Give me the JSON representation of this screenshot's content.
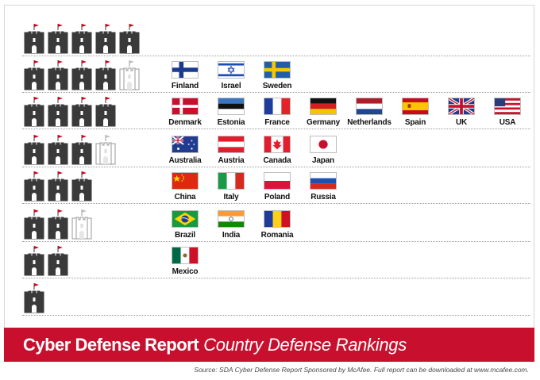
{
  "title": {
    "bold": "Cyber Defense Report",
    "italic": "Country Defense Rankings"
  },
  "source": "Source: SDA Cyber Defense Report Sponsored by McAfee. Full report can be downloaded at www.mcafee.com.",
  "colors": {
    "banner": "#c8102e",
    "castle": "#3a3a3a",
    "castle_flag": "#d0021b"
  },
  "tiers": [
    {
      "rating": 5,
      "countries": []
    },
    {
      "rating": 4.5,
      "countries": [
        {
          "name": "Finland",
          "flag": "finland-flag-icon"
        },
        {
          "name": "Israel",
          "flag": "israel-flag-icon"
        },
        {
          "name": "Sweden",
          "flag": "sweden-flag-icon"
        }
      ]
    },
    {
      "rating": 4,
      "countries": [
        {
          "name": "Denmark",
          "flag": "denmark-flag-icon"
        },
        {
          "name": "Estonia",
          "flag": "estonia-flag-icon"
        },
        {
          "name": "France",
          "flag": "france-flag-icon"
        },
        {
          "name": "Germany",
          "flag": "germany-flag-icon"
        },
        {
          "name": "Netherlands",
          "flag": "netherlands-flag-icon"
        },
        {
          "name": "Spain",
          "flag": "spain-flag-icon"
        },
        {
          "name": "UK",
          "flag": "uk-flag-icon"
        },
        {
          "name": "USA",
          "flag": "usa-flag-icon"
        }
      ]
    },
    {
      "rating": 3.5,
      "countries": [
        {
          "name": "Australia",
          "flag": "australia-flag-icon"
        },
        {
          "name": "Austria",
          "flag": "austria-flag-icon"
        },
        {
          "name": "Canada",
          "flag": "canada-flag-icon"
        },
        {
          "name": "Japan",
          "flag": "japan-flag-icon"
        }
      ]
    },
    {
      "rating": 3,
      "countries": [
        {
          "name": "China",
          "flag": "china-flag-icon"
        },
        {
          "name": "Italy",
          "flag": "italy-flag-icon"
        },
        {
          "name": "Poland",
          "flag": "poland-flag-icon"
        },
        {
          "name": "Russia",
          "flag": "russia-flag-icon"
        }
      ]
    },
    {
      "rating": 2.5,
      "countries": [
        {
          "name": "Brazil",
          "flag": "brazil-flag-icon"
        },
        {
          "name": "India",
          "flag": "india-flag-icon"
        },
        {
          "name": "Romania",
          "flag": "romania-flag-icon"
        }
      ]
    },
    {
      "rating": 2,
      "countries": [
        {
          "name": "Mexico",
          "flag": "mexico-flag-icon"
        }
      ]
    },
    {
      "rating": 1,
      "countries": []
    }
  ]
}
